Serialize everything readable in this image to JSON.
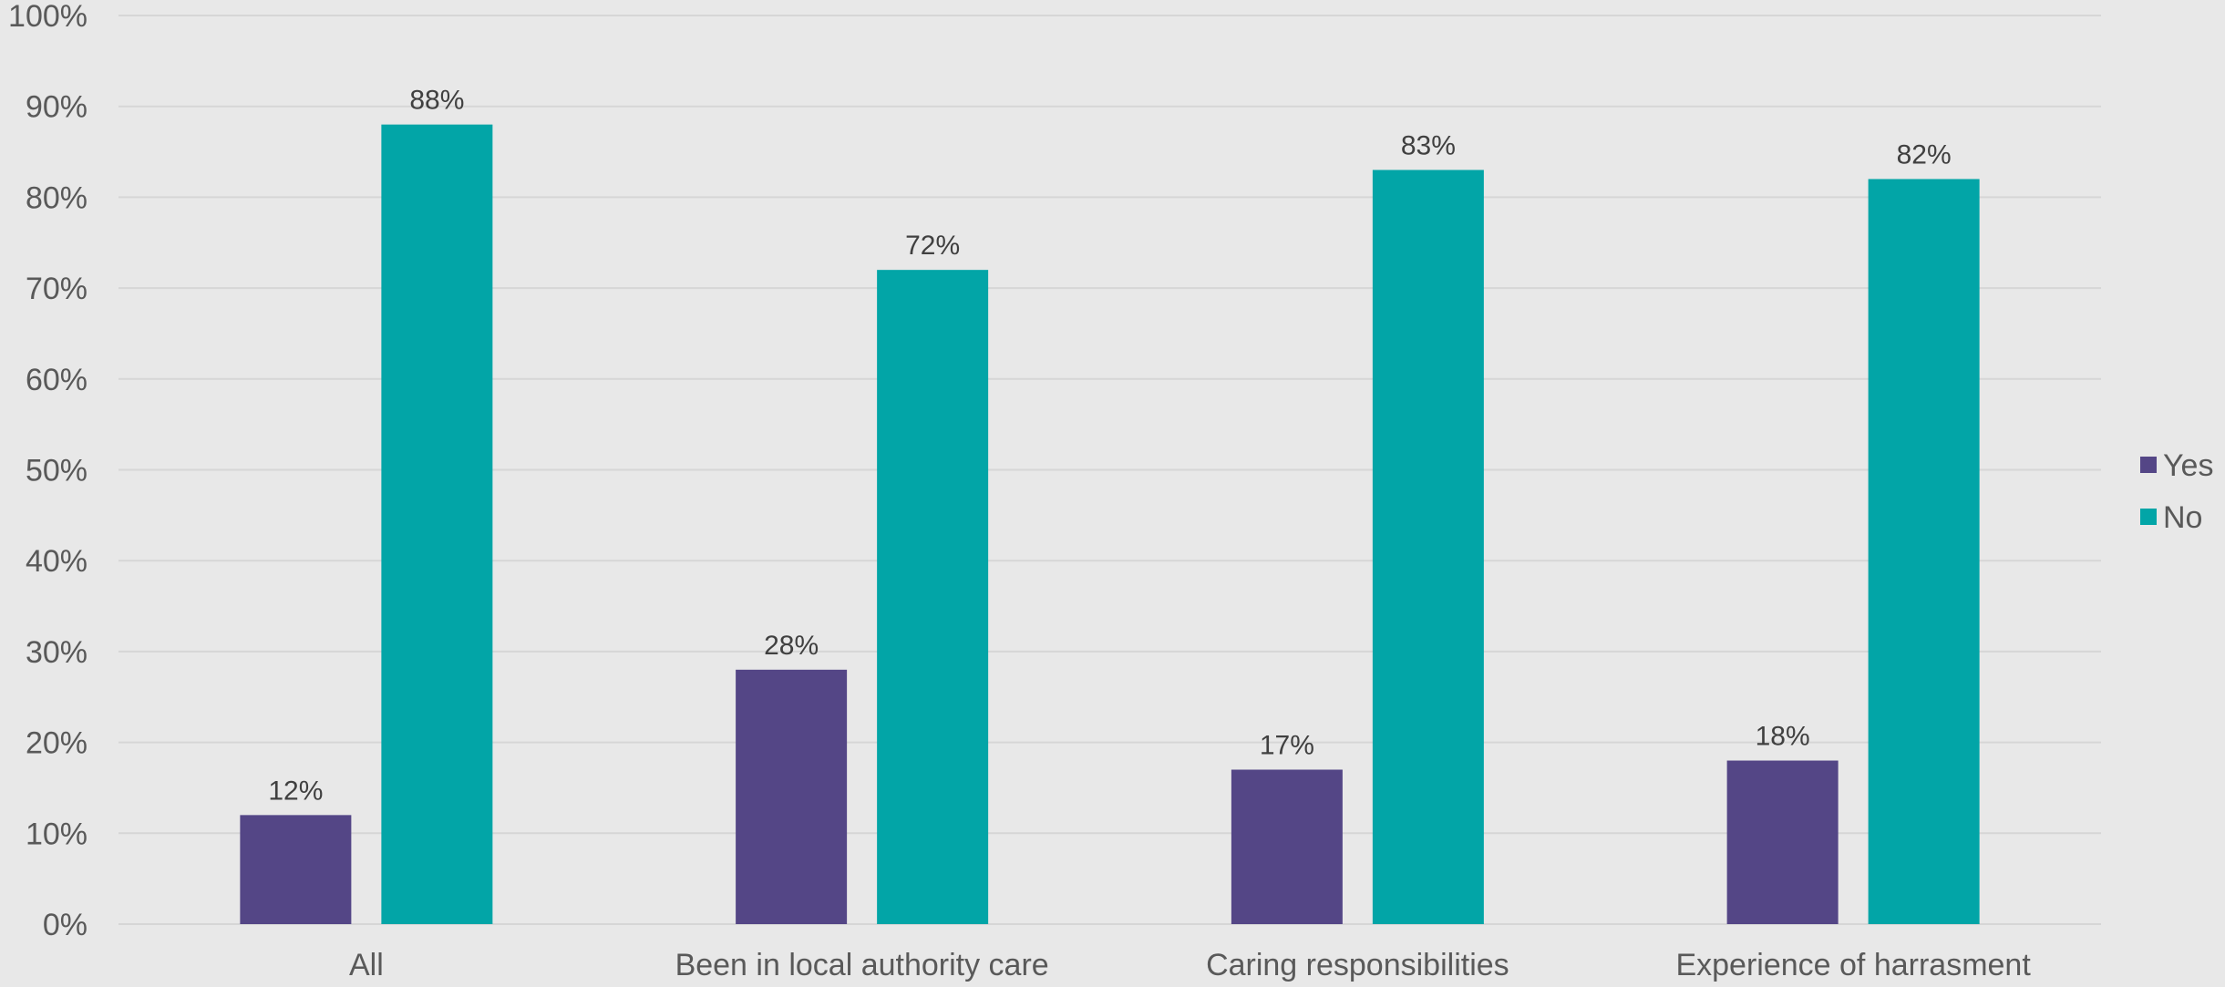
{
  "chart_data": {
    "type": "bar",
    "title": "",
    "xlabel": "",
    "ylabel": "",
    "categories": [
      "All",
      "Been in local authority care",
      "Caring responsibilities",
      "Experience of harrasment"
    ],
    "series": [
      {
        "name": "Yes",
        "color": "#544686",
        "values": [
          12,
          28,
          17,
          18
        ],
        "labels": [
          "12%",
          "28%",
          "17%",
          "18%"
        ]
      },
      {
        "name": "No",
        "color": "#02a5a7",
        "values": [
          88,
          72,
          83,
          82
        ],
        "labels": [
          "88%",
          "72%",
          "83%",
          "82%"
        ]
      }
    ],
    "ylim": [
      0,
      100
    ],
    "yticks": [
      0,
      10,
      20,
      30,
      40,
      50,
      60,
      70,
      80,
      90,
      100
    ],
    "ytick_labels": [
      "0%",
      "10%",
      "20%",
      "30%",
      "40%",
      "50%",
      "60%",
      "70%",
      "80%",
      "90%",
      "100%"
    ],
    "grid": true,
    "legend": "right",
    "data_labels": true
  }
}
